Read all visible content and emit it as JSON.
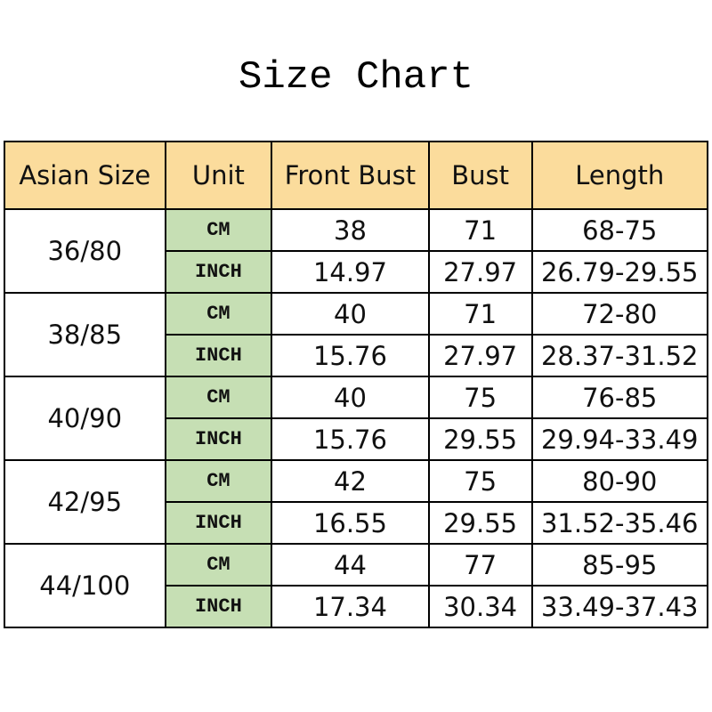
{
  "title": "Size Chart",
  "colors": {
    "header_bg": "#fbdc9c",
    "unit_bg": "#c6dfb4"
  },
  "table": {
    "headers": [
      "Asian Size",
      "Unit",
      "Front Bust",
      "Bust",
      "Length"
    ],
    "groups": [
      {
        "size": "36/80",
        "rows": [
          {
            "unit": "CM",
            "front_bust": "38",
            "bust": "71",
            "length": "68-75"
          },
          {
            "unit": "INCH",
            "front_bust": "14.97",
            "bust": "27.97",
            "length": "26.79-29.55"
          }
        ]
      },
      {
        "size": "38/85",
        "rows": [
          {
            "unit": "CM",
            "front_bust": "40",
            "bust": "71",
            "length": "72-80"
          },
          {
            "unit": "INCH",
            "front_bust": "15.76",
            "bust": "27.97",
            "length": "28.37-31.52"
          }
        ]
      },
      {
        "size": "40/90",
        "rows": [
          {
            "unit": "CM",
            "front_bust": "40",
            "bust": "75",
            "length": "76-85"
          },
          {
            "unit": "INCH",
            "front_bust": "15.76",
            "bust": "29.55",
            "length": "29.94-33.49"
          }
        ]
      },
      {
        "size": "42/95",
        "rows": [
          {
            "unit": "CM",
            "front_bust": "42",
            "bust": "75",
            "length": "80-90"
          },
          {
            "unit": "INCH",
            "front_bust": "16.55",
            "bust": "29.55",
            "length": "31.52-35.46"
          }
        ]
      },
      {
        "size": "44/100",
        "rows": [
          {
            "unit": "CM",
            "front_bust": "44",
            "bust": "77",
            "length": "85-95"
          },
          {
            "unit": "INCH",
            "front_bust": "17.34",
            "bust": "30.34",
            "length": "33.49-37.43"
          }
        ]
      }
    ]
  }
}
